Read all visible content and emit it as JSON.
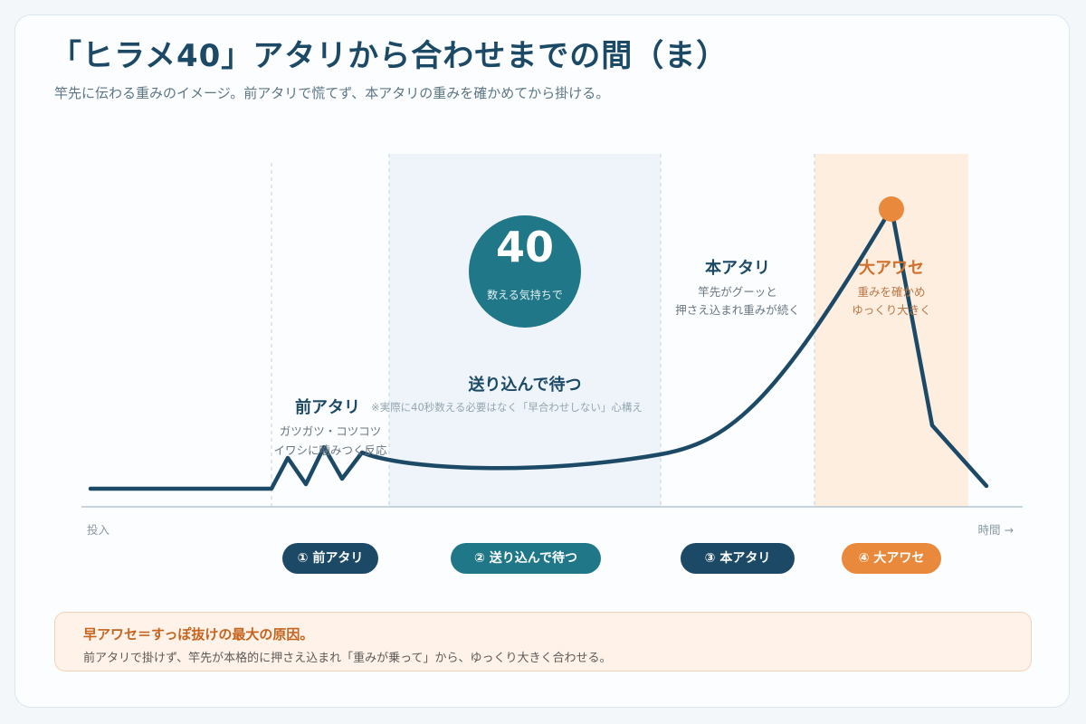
{
  "header": {
    "title": "「ヒラメ40」アタリから合わせまでの間（ま）",
    "subtitle": "竿先に伝わる重みのイメージ。前アタリで慌てず、本アタリの重みを確かめてから掛ける。"
  },
  "colors": {
    "navy": "#1c4a66",
    "teal": "#1f7788",
    "orange": "#e8893c",
    "wait_band": "#eef4fa",
    "strike_band": "#fdeee0"
  },
  "axis": {
    "start_label": "投入",
    "end_label": "時間 →"
  },
  "counter": {
    "number": "40",
    "caption": "数える気持ちで"
  },
  "annotations": {
    "pre": {
      "title": "前アタリ",
      "line1": "ガツガツ・コツコツ",
      "line2": "イワシに噛みつく反応"
    },
    "wait": {
      "title": "送り込んで待つ",
      "note": "※実際に40秒数える必要はなく「早合わせしない」心構え"
    },
    "main": {
      "title": "本アタリ",
      "line1": "竿先がグーッと",
      "line2": "押さえ込まれ重みが続く"
    },
    "strike": {
      "title": "大アワセ",
      "line1": "重みを確かめ",
      "line2": "ゆっくり大きく"
    }
  },
  "steps": [
    {
      "label": "① 前アタリ"
    },
    {
      "label": "② 送り込んで待つ"
    },
    {
      "label": "③ 本アタリ"
    },
    {
      "label": "④ 大アワセ"
    }
  ],
  "note": {
    "title": "早アワセ＝すっぽ抜けの最大の原因。",
    "body": "前アタリで掛けず、竿先が本格的に押さえ込まれ「重みが乗って」から、ゆっくり大きく合わせる。"
  }
}
